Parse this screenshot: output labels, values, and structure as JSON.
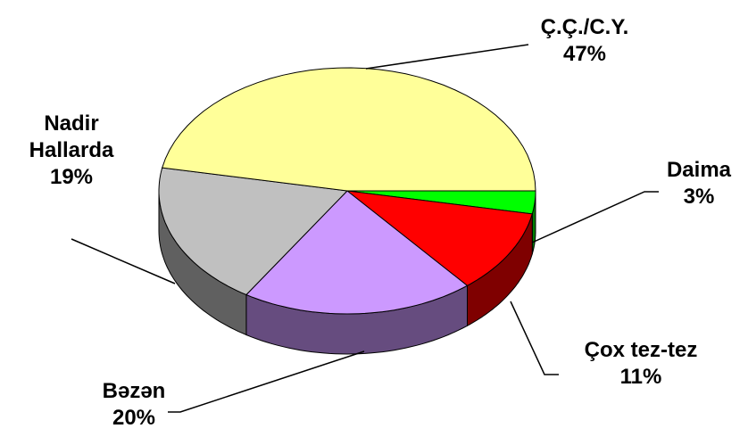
{
  "chart_data": {
    "type": "pie3d",
    "categories": [
      "Daima",
      "Çox tez-tez",
      "Bəzən",
      "Nadir Hallarda",
      "Ç.Ç./C.Y."
    ],
    "values": [
      3,
      11,
      20,
      19,
      47
    ],
    "value_labels": [
      "3%",
      "11%",
      "20%",
      "19%",
      "47%"
    ],
    "colors": [
      "#00ff00",
      "#ff0000",
      "#cc99ff",
      "#c0c0c0",
      "#ffff99"
    ]
  }
}
